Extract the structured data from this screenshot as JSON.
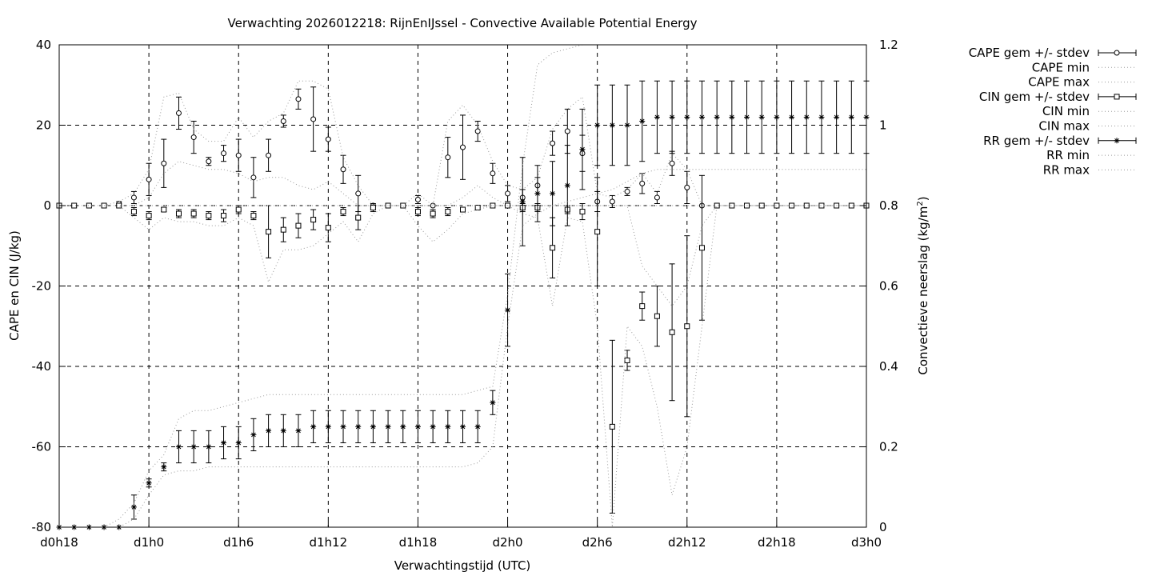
{
  "chart_data": {
    "type": "line",
    "title": "Verwachting 2026012218: RijnEnIJssel - Convective Available Potential Energy",
    "xlabel": "Verwachtingstijd (UTC)",
    "ylabel": "CAPE en CIN (J/kg)",
    "y2label": "Convectieve neerslag (kg/m",
    "y2label_sup": "2",
    "y2label_tail": ")",
    "xlim": [
      18,
      72
    ],
    "ylim": [
      -80,
      40
    ],
    "y2lim": [
      0,
      1.2
    ],
    "grid": true,
    "legend_position": "outside-right",
    "x_ticks": [
      {
        "value": 18,
        "label": "d0h18"
      },
      {
        "value": 24,
        "label": "d1h0"
      },
      {
        "value": 30,
        "label": "d1h6"
      },
      {
        "value": 36,
        "label": "d1h12"
      },
      {
        "value": 42,
        "label": "d1h18"
      },
      {
        "value": 48,
        "label": "d2h0"
      },
      {
        "value": 54,
        "label": "d2h6"
      },
      {
        "value": 60,
        "label": "d2h12"
      },
      {
        "value": 66,
        "label": "d2h18"
      },
      {
        "value": 72,
        "label": "d3h0"
      }
    ],
    "y_ticks": [
      {
        "value": 40,
        "label": "40"
      },
      {
        "value": 20,
        "label": "20"
      },
      {
        "value": 0,
        "label": "0"
      },
      {
        "value": -20,
        "label": "-20"
      },
      {
        "value": -40,
        "label": "-40"
      },
      {
        "value": -60,
        "label": "-60"
      },
      {
        "value": -80,
        "label": "-80"
      }
    ],
    "y2_ticks": [
      {
        "value": 1.2,
        "label": "1.2"
      },
      {
        "value": 1.0,
        "label": "1"
      },
      {
        "value": 0.8,
        "label": "0.8"
      },
      {
        "value": 0.6,
        "label": "0.6"
      },
      {
        "value": 0.4,
        "label": "0.4"
      },
      {
        "value": 0.2,
        "label": "0.2"
      },
      {
        "value": 0.0,
        "label": "0"
      }
    ],
    "series": [
      {
        "name": "CAPE gem +/- stdev",
        "axis": "y1",
        "marker": "circle",
        "style": "errorbars",
        "x": [
          18,
          19,
          20,
          21,
          22,
          23,
          24,
          25,
          26,
          27,
          28,
          29,
          30,
          31,
          32,
          33,
          34,
          35,
          36,
          37,
          38,
          39,
          40,
          41,
          42,
          43,
          44,
          45,
          46,
          47,
          48,
          49,
          50,
          51,
          52,
          53,
          54,
          55,
          56,
          57,
          58,
          59,
          60,
          61,
          62,
          63,
          64,
          65,
          66,
          67,
          68,
          69,
          70,
          71,
          72
        ],
        "y": [
          0,
          0,
          0,
          0,
          0.5,
          2,
          6.5,
          10.5,
          23,
          17,
          11,
          13,
          12.5,
          7,
          12.5,
          21,
          26.5,
          21.5,
          16.5,
          9,
          3,
          0,
          0,
          0,
          1.5,
          0,
          12,
          14.5,
          18.5,
          8,
          3,
          2,
          5,
          15.5,
          18.5,
          13,
          1,
          1,
          3.5,
          5.5,
          2,
          10.5,
          4.5,
          0,
          0,
          0,
          0,
          0,
          0,
          0,
          0,
          0,
          0,
          0,
          0
        ],
        "err": [
          0,
          0,
          0,
          0,
          0.5,
          1.5,
          4,
          6,
          4,
          4,
          1,
          2,
          4,
          5,
          4,
          1.5,
          2.5,
          8,
          3,
          3.5,
          4.5,
          0,
          0,
          0,
          1,
          0,
          5,
          8,
          2.5,
          2.5,
          2,
          2,
          2,
          3,
          5.5,
          4.5,
          2.5,
          1.5,
          1,
          2.5,
          1.5,
          3,
          4,
          0,
          0,
          0,
          0,
          0,
          0,
          0,
          0,
          0,
          0,
          0,
          0
        ]
      },
      {
        "name": "CAPE min",
        "axis": "y1",
        "style": "dotted",
        "x": [
          18,
          19,
          20,
          21,
          22,
          23,
          24,
          25,
          26,
          27,
          28,
          29,
          30,
          31,
          32,
          33,
          34,
          35,
          36,
          37,
          38,
          39,
          40,
          41,
          42,
          43,
          44,
          45,
          46,
          47,
          48,
          49,
          50,
          51,
          52,
          53,
          54,
          55,
          56,
          57,
          58,
          59,
          60,
          61,
          62,
          63,
          64,
          65,
          66,
          67,
          68,
          69,
          70,
          71,
          72
        ],
        "y": [
          0,
          0,
          0,
          0,
          0,
          0,
          2,
          8,
          11,
          10,
          9,
          9,
          8,
          6,
          7,
          7,
          5,
          4,
          6,
          3,
          0,
          0,
          0,
          0,
          0,
          0,
          0,
          2,
          5,
          2,
          0,
          0,
          0,
          0,
          0,
          0,
          0,
          0,
          0,
          0,
          0,
          0,
          0,
          0,
          0,
          0,
          0,
          0,
          0,
          0,
          0,
          0,
          0,
          0,
          0
        ]
      },
      {
        "name": "CAPE max",
        "axis": "y1",
        "style": "dotted",
        "x": [
          18,
          19,
          20,
          21,
          22,
          23,
          24,
          25,
          26,
          27,
          28,
          29,
          30,
          31,
          32,
          33,
          34,
          35,
          36,
          37,
          38,
          39,
          40,
          41,
          42,
          43,
          44,
          45,
          46,
          47,
          48,
          49,
          50,
          51,
          52,
          53,
          54,
          55,
          56,
          57,
          58,
          59,
          60,
          61,
          62,
          63,
          64,
          65,
          66,
          67,
          68,
          69,
          70,
          71,
          72
        ],
        "y": [
          0,
          0,
          0,
          0,
          1,
          3,
          9,
          27,
          28,
          19,
          16,
          16,
          22,
          17,
          21,
          23,
          31,
          31,
          29,
          12,
          5,
          0,
          0,
          0,
          3,
          0,
          21,
          25,
          20,
          11,
          5,
          4,
          7,
          19,
          24,
          27,
          3,
          2,
          4,
          8,
          3,
          13,
          9,
          0,
          0,
          0,
          0,
          0,
          0,
          0,
          0,
          0,
          0,
          0,
          0
        ]
      },
      {
        "name": "CIN gem +/- stdev",
        "axis": "y1",
        "marker": "square",
        "style": "errorbars",
        "x": [
          18,
          19,
          20,
          21,
          22,
          23,
          24,
          25,
          26,
          27,
          28,
          29,
          30,
          31,
          32,
          33,
          34,
          35,
          36,
          37,
          38,
          39,
          40,
          41,
          42,
          43,
          44,
          45,
          46,
          47,
          48,
          49,
          50,
          51,
          52,
          53,
          54,
          55,
          56,
          57,
          58,
          59,
          60,
          61,
          62,
          63,
          64,
          65,
          66,
          67,
          68,
          69,
          70,
          71,
          72
        ],
        "y": [
          0,
          0,
          0,
          0,
          0,
          -1.5,
          -2.5,
          -1,
          -2,
          -2,
          -2.5,
          -2.5,
          -1,
          -2.5,
          -6.5,
          -6,
          -5,
          -3.5,
          -5.5,
          -1.5,
          -3,
          -0.5,
          0,
          0,
          -1.5,
          -2,
          -1.5,
          -1,
          -0.5,
          0,
          0,
          -0.5,
          -0.5,
          -10.5,
          -1,
          -1.5,
          -6.5,
          -55,
          -38.5,
          -25,
          -27.5,
          -31.5,
          -30,
          -10.5,
          0,
          0,
          0,
          0,
          0,
          0,
          0,
          0,
          0,
          0,
          0
        ],
        "err": [
          0,
          0,
          0,
          0,
          0,
          1,
          1,
          0.5,
          1,
          1,
          1,
          1.5,
          1,
          1,
          6.5,
          3,
          3,
          2.5,
          3.5,
          1,
          3,
          1,
          0,
          0,
          1,
          1,
          1,
          0.5,
          0.5,
          0,
          0,
          1,
          1,
          7.5,
          1,
          2,
          13.5,
          21.5,
          2.5,
          3.5,
          7.5,
          17,
          22.5,
          18,
          0,
          0,
          0,
          0,
          0,
          0,
          0,
          0,
          0,
          0,
          0
        ]
      },
      {
        "name": "CIN min",
        "axis": "y1",
        "style": "dotted",
        "x": [
          18,
          19,
          20,
          21,
          22,
          23,
          24,
          25,
          26,
          27,
          28,
          29,
          30,
          31,
          32,
          33,
          34,
          35,
          36,
          37,
          38,
          39,
          40,
          41,
          42,
          43,
          44,
          45,
          46,
          47,
          48,
          49,
          50,
          51,
          52,
          53,
          54,
          55,
          56,
          57,
          58,
          59,
          60,
          61,
          62,
          63,
          64,
          65,
          66,
          67,
          68,
          69,
          70,
          71,
          72
        ],
        "y": [
          0,
          0,
          0,
          0,
          0,
          -3,
          -6,
          -3,
          -4,
          -4,
          -5,
          -5,
          -3,
          -5,
          -19,
          -11,
          -11,
          -10,
          -7,
          -4,
          -9,
          -2,
          0,
          0,
          -5,
          -9,
          -6,
          -2,
          -1,
          0,
          0,
          -2,
          -3,
          -25,
          -3,
          -4,
          -30,
          -80,
          -30,
          -35,
          -50,
          -72,
          -60,
          -30,
          0,
          0,
          0,
          0,
          0,
          0,
          0,
          0,
          0,
          0,
          0
        ]
      },
      {
        "name": "CIN max",
        "axis": "y1",
        "style": "dotted",
        "x": [
          18,
          19,
          20,
          21,
          22,
          23,
          24,
          25,
          26,
          27,
          28,
          29,
          30,
          31,
          32,
          33,
          34,
          35,
          36,
          37,
          38,
          39,
          40,
          41,
          42,
          43,
          44,
          45,
          46,
          47,
          48,
          49,
          50,
          51,
          52,
          53,
          54,
          55,
          56,
          57,
          58,
          59,
          60,
          61,
          62,
          63,
          64,
          65,
          66,
          67,
          68,
          69,
          70,
          71,
          72
        ],
        "y": [
          0,
          0,
          0,
          0,
          0,
          0,
          0,
          0,
          0,
          0,
          0,
          0,
          0,
          0,
          0,
          0,
          0,
          0,
          0,
          0,
          0,
          0,
          0,
          0,
          0,
          0,
          0,
          0,
          0,
          0,
          0,
          0,
          0,
          0,
          0,
          0,
          0,
          0,
          0,
          -15,
          -20,
          -25,
          -20,
          -5,
          0,
          0,
          0,
          0,
          0,
          0,
          0,
          0,
          0,
          0,
          0
        ]
      },
      {
        "name": "RR gem +/- stdev",
        "axis": "y2",
        "marker": "star",
        "style": "errorbars",
        "x": [
          18,
          19,
          20,
          21,
          22,
          23,
          24,
          25,
          26,
          27,
          28,
          29,
          30,
          31,
          32,
          33,
          34,
          35,
          36,
          37,
          38,
          39,
          40,
          41,
          42,
          43,
          44,
          45,
          46,
          47,
          48,
          49,
          50,
          51,
          52,
          53,
          54,
          55,
          56,
          57,
          58,
          59,
          60,
          61,
          62,
          63,
          64,
          65,
          66,
          67,
          68,
          69,
          70,
          71,
          72
        ],
        "y": [
          0,
          0,
          0,
          0,
          0,
          0.05,
          0.11,
          0.15,
          0.2,
          0.2,
          0.2,
          0.21,
          0.21,
          0.23,
          0.24,
          0.24,
          0.24,
          0.25,
          0.25,
          0.25,
          0.25,
          0.25,
          0.25,
          0.25,
          0.25,
          0.25,
          0.25,
          0.25,
          0.25,
          0.31,
          0.54,
          0.81,
          0.83,
          0.83,
          0.85,
          0.94,
          1.0,
          1.0,
          1.0,
          1.01,
          1.02,
          1.02,
          1.02,
          1.02,
          1.02,
          1.02,
          1.02,
          1.02,
          1.02,
          1.02,
          1.02,
          1.02,
          1.02,
          1.02,
          1.02
        ],
        "err": [
          0,
          0,
          0,
          0,
          0,
          0.03,
          0.01,
          0.01,
          0.04,
          0.04,
          0.04,
          0.04,
          0.04,
          0.04,
          0.04,
          0.04,
          0.04,
          0.04,
          0.04,
          0.04,
          0.04,
          0.04,
          0.04,
          0.04,
          0.04,
          0.04,
          0.04,
          0.04,
          0.04,
          0.03,
          0.09,
          0.11,
          0.07,
          0.08,
          0.1,
          0.1,
          0.1,
          0.1,
          0.1,
          0.1,
          0.09,
          0.09,
          0.09,
          0.09,
          0.09,
          0.09,
          0.09,
          0.09,
          0.09,
          0.09,
          0.09,
          0.09,
          0.09,
          0.09,
          0.09
        ]
      },
      {
        "name": "RR min",
        "axis": "y2",
        "style": "dotted",
        "x": [
          18,
          19,
          20,
          21,
          22,
          23,
          24,
          25,
          26,
          27,
          28,
          29,
          30,
          31,
          32,
          33,
          34,
          35,
          36,
          37,
          38,
          39,
          40,
          41,
          42,
          43,
          44,
          45,
          46,
          47,
          48,
          49,
          50,
          51,
          52,
          53,
          54,
          55,
          56,
          57,
          58,
          59,
          60,
          61,
          62,
          63,
          64,
          65,
          66,
          67,
          68,
          69,
          70,
          71,
          72
        ],
        "y": [
          0,
          0,
          0,
          0,
          0,
          0.02,
          0.08,
          0.13,
          0.14,
          0.14,
          0.15,
          0.15,
          0.15,
          0.15,
          0.15,
          0.15,
          0.15,
          0.15,
          0.15,
          0.15,
          0.15,
          0.15,
          0.15,
          0.15,
          0.15,
          0.15,
          0.15,
          0.15,
          0.16,
          0.2,
          0.5,
          0.75,
          0.78,
          0.8,
          0.81,
          0.82,
          0.83,
          0.84,
          0.86,
          0.88,
          0.89,
          0.89,
          0.89,
          0.89,
          0.89,
          0.89,
          0.89,
          0.89,
          0.89,
          0.89,
          0.89,
          0.89,
          0.89,
          0.89,
          0.89
        ]
      },
      {
        "name": "RR max",
        "axis": "y2",
        "style": "dotted",
        "x": [
          18,
          19,
          20,
          21,
          22,
          23,
          24,
          25,
          26,
          27,
          28,
          29,
          30,
          31,
          32,
          33,
          34,
          35,
          36,
          37,
          38,
          39,
          40,
          41,
          42,
          43,
          44,
          45,
          46,
          47,
          48,
          49,
          50,
          51,
          52,
          53,
          54,
          55,
          56,
          57,
          58,
          59,
          60,
          61,
          62,
          63,
          64,
          65,
          66,
          67,
          68,
          69,
          70,
          71,
          72
        ],
        "y": [
          0,
          0,
          0,
          0,
          0.02,
          0.06,
          0.14,
          0.18,
          0.27,
          0.29,
          0.29,
          0.3,
          0.31,
          0.32,
          0.33,
          0.33,
          0.33,
          0.33,
          0.33,
          0.33,
          0.33,
          0.33,
          0.33,
          0.33,
          0.33,
          0.33,
          0.33,
          0.33,
          0.34,
          0.35,
          0.58,
          0.9,
          1.15,
          1.18,
          1.19,
          1.2,
          1.2,
          1.2,
          1.2,
          1.2,
          1.2,
          1.2,
          1.2,
          1.2,
          1.2,
          1.2,
          1.2,
          1.2,
          1.2,
          1.2,
          1.2,
          1.2,
          1.2,
          1.2,
          1.2
        ]
      }
    ]
  }
}
